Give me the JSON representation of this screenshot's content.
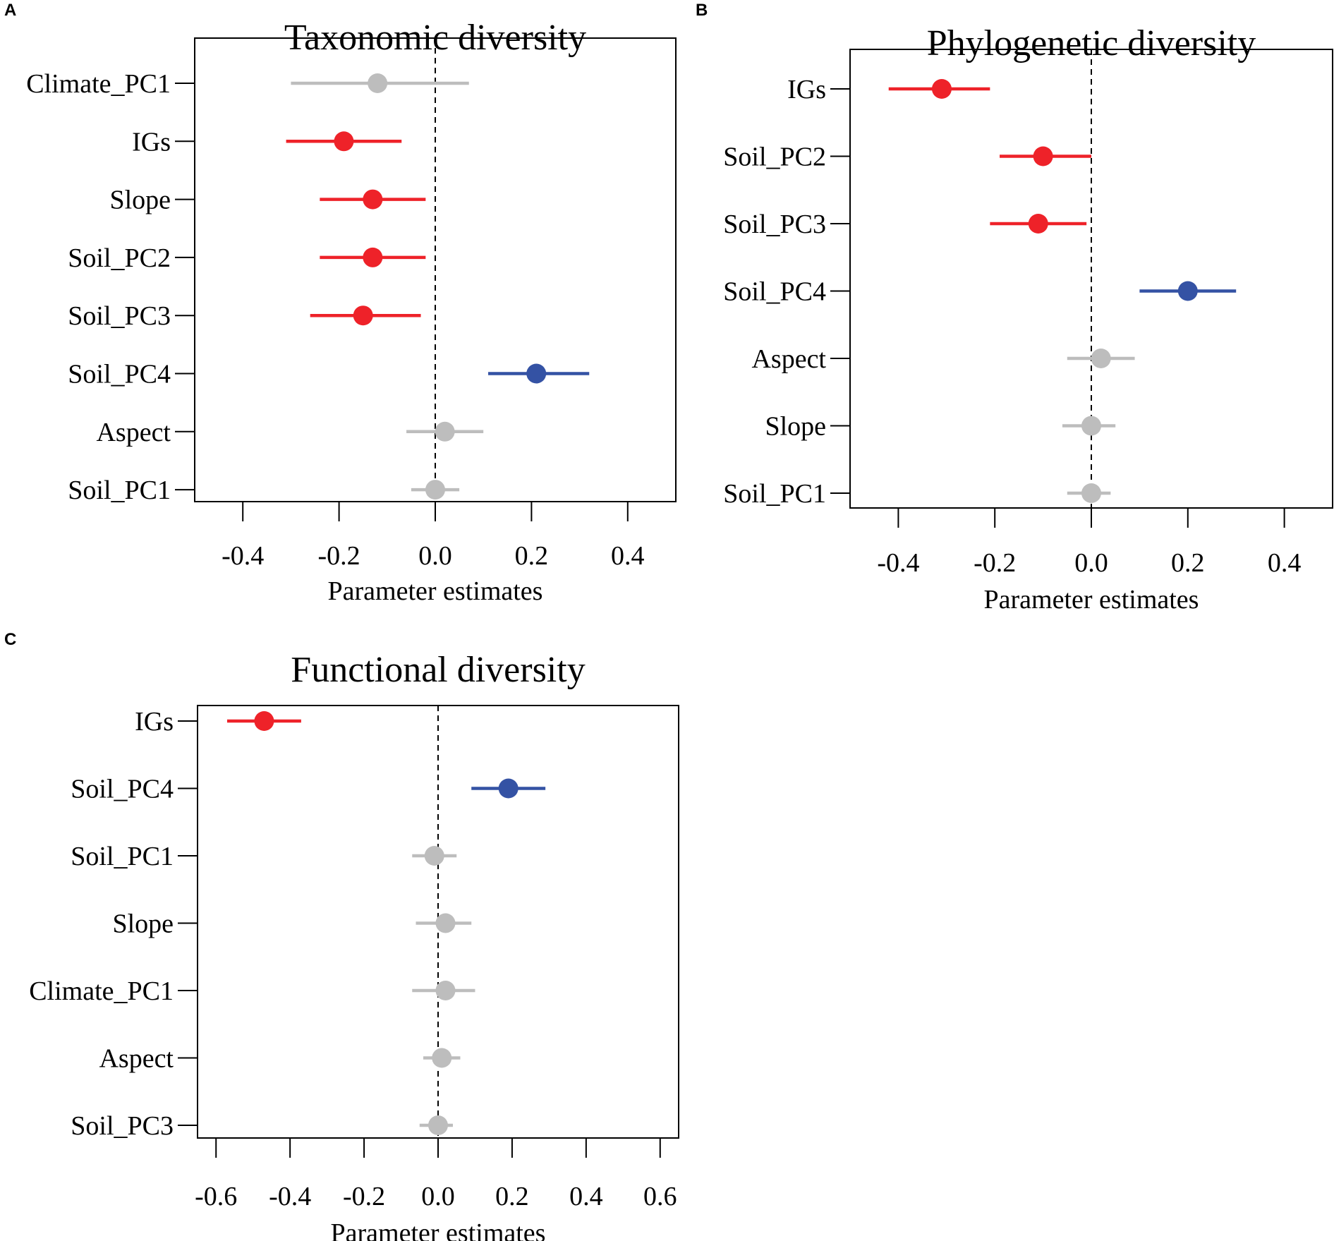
{
  "colors": {
    "negative": "#ee2229",
    "positive": "#3452a4",
    "nonsignificant": "#bdbdbd"
  },
  "chart_data": [
    {
      "type": "forest",
      "panel": "A",
      "title": "Taxonomic diversity",
      "xlabel": "Parameter estimates",
      "xlim": [
        -0.5,
        0.5
      ],
      "xticks": [
        -0.4,
        -0.2,
        0.0,
        0.2,
        0.4
      ],
      "xtick_labels": [
        "-0.4",
        "-0.2",
        "0.0",
        "0.2",
        "0.4"
      ],
      "reference_line": 0,
      "rows": [
        {
          "label": "Climate_PC1",
          "estimate": -0.12,
          "lower": -0.3,
          "upper": 0.07,
          "effect": "nonsignificant"
        },
        {
          "label": "IGs",
          "estimate": -0.19,
          "lower": -0.31,
          "upper": -0.07,
          "effect": "negative"
        },
        {
          "label": "Slope",
          "estimate": -0.13,
          "lower": -0.24,
          "upper": -0.02,
          "effect": "negative"
        },
        {
          "label": "Soil_PC2",
          "estimate": -0.13,
          "lower": -0.24,
          "upper": -0.02,
          "effect": "negative"
        },
        {
          "label": "Soil_PC3",
          "estimate": -0.15,
          "lower": -0.26,
          "upper": -0.03,
          "effect": "negative"
        },
        {
          "label": "Soil_PC4",
          "estimate": 0.21,
          "lower": 0.11,
          "upper": 0.32,
          "effect": "positive"
        },
        {
          "label": "Aspect",
          "estimate": 0.02,
          "lower": -0.06,
          "upper": 0.1,
          "effect": "nonsignificant"
        },
        {
          "label": "Soil_PC1",
          "estimate": 0.0,
          "lower": -0.05,
          "upper": 0.05,
          "effect": "nonsignificant"
        }
      ]
    },
    {
      "type": "forest",
      "panel": "B",
      "title": "Phylogenetic diversity",
      "xlabel": "Parameter estimates",
      "xlim": [
        -0.5,
        0.5
      ],
      "xticks": [
        -0.4,
        -0.2,
        0.0,
        0.2,
        0.4
      ],
      "xtick_labels": [
        "-0.4",
        "-0.2",
        "0.0",
        "0.2",
        "0.4"
      ],
      "reference_line": 0,
      "rows": [
        {
          "label": "IGs",
          "estimate": -0.31,
          "lower": -0.42,
          "upper": -0.21,
          "effect": "negative"
        },
        {
          "label": "Soil_PC2",
          "estimate": -0.1,
          "lower": -0.19,
          "upper": 0.0,
          "effect": "negative"
        },
        {
          "label": "Soil_PC3",
          "estimate": -0.11,
          "lower": -0.21,
          "upper": -0.01,
          "effect": "negative"
        },
        {
          "label": "Soil_PC4",
          "estimate": 0.2,
          "lower": 0.1,
          "upper": 0.3,
          "effect": "positive"
        },
        {
          "label": "Aspect",
          "estimate": 0.02,
          "lower": -0.05,
          "upper": 0.09,
          "effect": "nonsignificant"
        },
        {
          "label": "Slope",
          "estimate": 0.0,
          "lower": -0.06,
          "upper": 0.05,
          "effect": "nonsignificant"
        },
        {
          "label": "Soil_PC1",
          "estimate": 0.0,
          "lower": -0.05,
          "upper": 0.04,
          "effect": "nonsignificant"
        }
      ]
    },
    {
      "type": "forest",
      "panel": "C",
      "title": "Functional diversity",
      "xlabel": "Parameter estimates",
      "xlim": [
        -0.65,
        0.65
      ],
      "xticks": [
        -0.6,
        -0.4,
        -0.2,
        0.0,
        0.2,
        0.4,
        0.6
      ],
      "xtick_labels": [
        "-0.6",
        "-0.4",
        "-0.2",
        "0.0",
        "0.2",
        "0.4",
        "0.6"
      ],
      "reference_line": 0,
      "rows": [
        {
          "label": "IGs",
          "estimate": -0.47,
          "lower": -0.57,
          "upper": -0.37,
          "effect": "negative"
        },
        {
          "label": "Soil_PC4",
          "estimate": 0.19,
          "lower": 0.09,
          "upper": 0.29,
          "effect": "positive"
        },
        {
          "label": "Soil_PC1",
          "estimate": -0.01,
          "lower": -0.07,
          "upper": 0.05,
          "effect": "nonsignificant"
        },
        {
          "label": "Slope",
          "estimate": 0.02,
          "lower": -0.06,
          "upper": 0.09,
          "effect": "nonsignificant"
        },
        {
          "label": "Climate_PC1",
          "estimate": 0.02,
          "lower": -0.07,
          "upper": 0.1,
          "effect": "nonsignificant"
        },
        {
          "label": "Aspect",
          "estimate": 0.01,
          "lower": -0.04,
          "upper": 0.06,
          "effect": "nonsignificant"
        },
        {
          "label": "Soil_PC3",
          "estimate": 0.0,
          "lower": -0.05,
          "upper": 0.04,
          "effect": "nonsignificant"
        }
      ]
    }
  ]
}
